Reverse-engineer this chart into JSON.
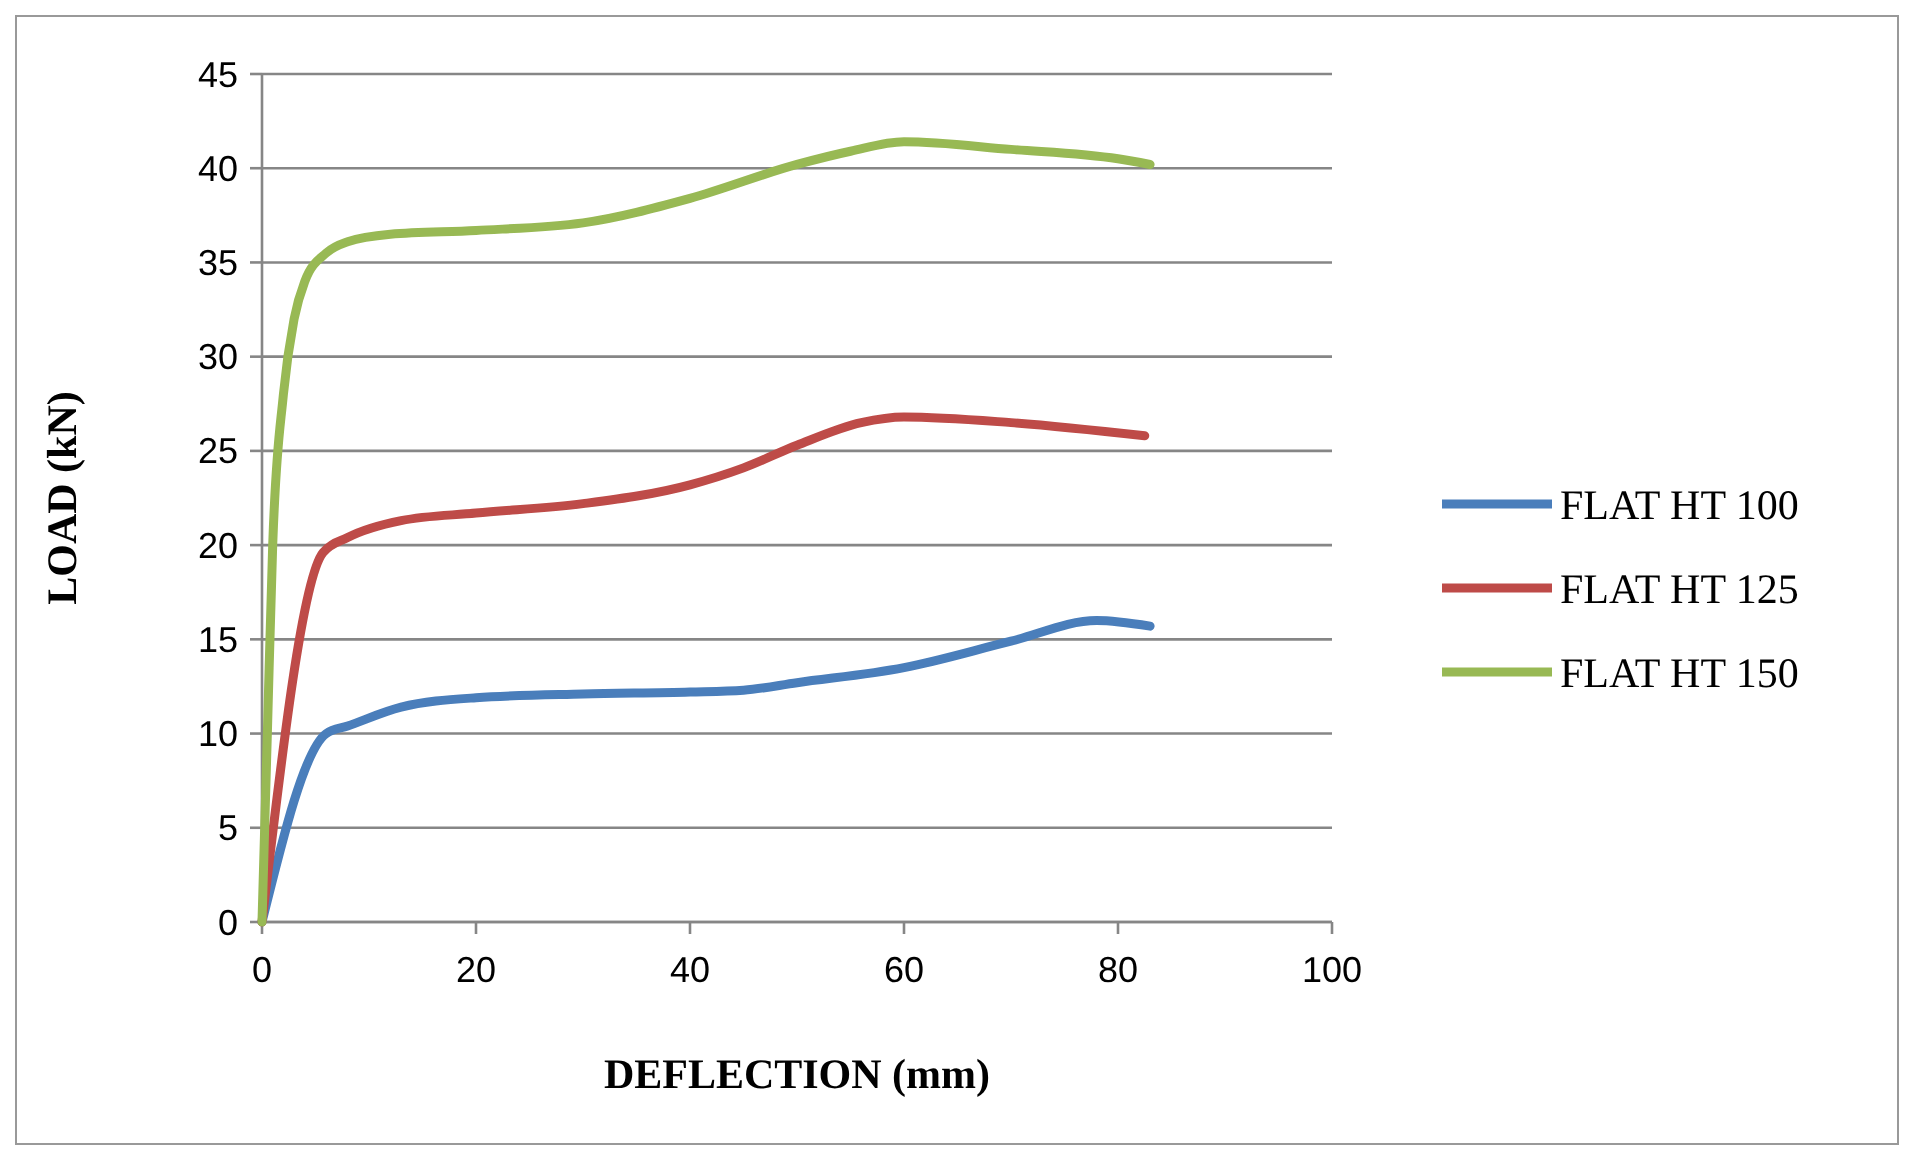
{
  "chart_data": {
    "type": "line",
    "xlabel": "DEFLECTION (mm)",
    "ylabel": "LOAD (kN)",
    "xlim": [
      0,
      100
    ],
    "xticks": [
      0,
      20,
      40,
      60,
      80,
      100
    ],
    "ylim": [
      0,
      45
    ],
    "yticks": [
      0,
      5,
      10,
      15,
      20,
      25,
      30,
      35,
      40,
      45
    ],
    "grid": "y",
    "legend": "right",
    "marker": "none",
    "line_style": "solid",
    "series": [
      {
        "name": "FLAT HT 100",
        "color": "#4a7ebb",
        "x": [
          0,
          6,
          8,
          13,
          20,
          30,
          40,
          45,
          50,
          60,
          70,
          78,
          83
        ],
        "values": [
          0,
          10,
          10.4,
          11.4,
          11.9,
          12.1,
          12.2,
          12.3,
          12.7,
          13.5,
          14.9,
          16,
          15.7
        ]
      },
      {
        "name": "FLAT HT 125",
        "color": "#be4b48",
        "x": [
          0,
          5.7,
          8,
          13,
          20,
          30,
          40,
          45,
          50,
          56,
          60,
          70,
          82.5
        ],
        "values": [
          0,
          19.6,
          20.4,
          21.3,
          21.7,
          22.2,
          23.2,
          24.1,
          25.3,
          26.5,
          26.8,
          26.5,
          25.8
        ]
      },
      {
        "name": "FLAT HT 150",
        "color": "#98b954",
        "x": [
          0,
          0.5,
          1,
          2,
          3,
          4,
          6,
          8,
          12,
          20,
          30,
          40,
          50,
          55,
          60,
          70,
          80,
          83
        ],
        "values": [
          0,
          10,
          20,
          28,
          32,
          34,
          35.5,
          36.1,
          36.5,
          36.7,
          37.1,
          38.4,
          40.2,
          40.9,
          41.4,
          41,
          40.5,
          40.2
        ]
      }
    ]
  }
}
